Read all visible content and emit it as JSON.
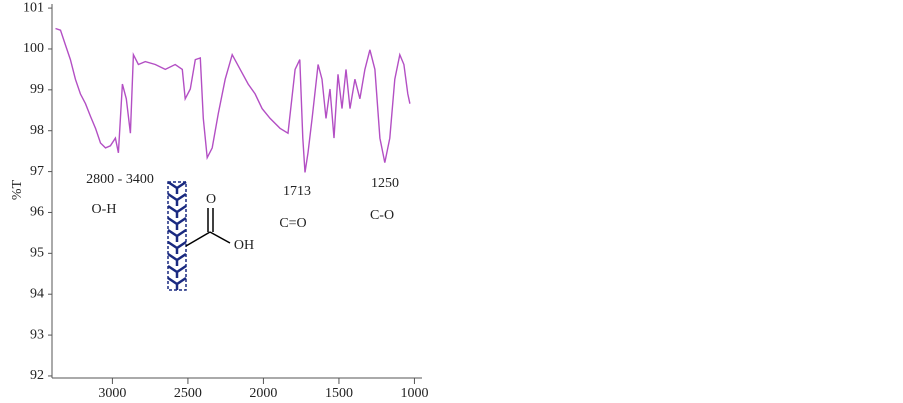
{
  "chart_data": {
    "type": "line",
    "y_label": "%T",
    "x": [
      3377,
      3344,
      3311,
      3278,
      3245,
      3212,
      3178,
      3145,
      3112,
      3079,
      3046,
      3013,
      2980,
      2960,
      2934,
      2908,
      2881,
      2861,
      2828,
      2782,
      2716,
      2650,
      2584,
      2537,
      2518,
      2484,
      2451,
      2418,
      2398,
      2372,
      2339,
      2299,
      2253,
      2207,
      2154,
      2101,
      2055,
      2009,
      1956,
      1890,
      1837,
      1790,
      1759,
      1739,
      1725,
      1705,
      1678,
      1638,
      1612,
      1586,
      1559,
      1533,
      1506,
      1480,
      1453,
      1427,
      1394,
      1361,
      1328,
      1295,
      1262,
      1229,
      1196,
      1163,
      1130,
      1097,
      1070,
      1044,
      1030
    ],
    "series": [
      {
        "color": "#b34fc4",
        "values": [
          100.5,
          100.46,
          100.1,
          99.74,
          99.26,
          98.9,
          98.66,
          98.35,
          98.06,
          97.7,
          97.58,
          97.63,
          97.82,
          97.46,
          99.14,
          98.78,
          97.94,
          99.86,
          99.62,
          99.69,
          99.62,
          99.5,
          99.62,
          99.5,
          98.78,
          99.02,
          99.74,
          99.78,
          98.3,
          97.34,
          97.58,
          98.42,
          99.26,
          99.86,
          99.5,
          99.14,
          98.9,
          98.54,
          98.3,
          98.06,
          97.94,
          99.5,
          99.74,
          97.82,
          96.98,
          97.46,
          98.3,
          99.62,
          99.26,
          98.3,
          99.02,
          97.82,
          99.38,
          98.54,
          99.5,
          98.54,
          99.26,
          98.78,
          99.5,
          99.98,
          99.5,
          97.82,
          97.22,
          97.82,
          99.26,
          99.86,
          99.62,
          98.9,
          98.66
        ]
      }
    ],
    "xlim": [
      3400,
      950
    ],
    "xticks": [
      3000,
      2500,
      2000,
      1500,
      1000
    ],
    "ylim": [
      91.95,
      101.1
    ],
    "yticks": [
      92,
      93,
      94,
      95,
      96,
      97,
      98,
      99,
      100,
      101
    ],
    "annotations": [
      "2800 - 3400",
      "O-H",
      "1713",
      "C=O",
      "1250",
      "C-O"
    ],
    "molecule_labels": [
      "O",
      "OH"
    ]
  }
}
